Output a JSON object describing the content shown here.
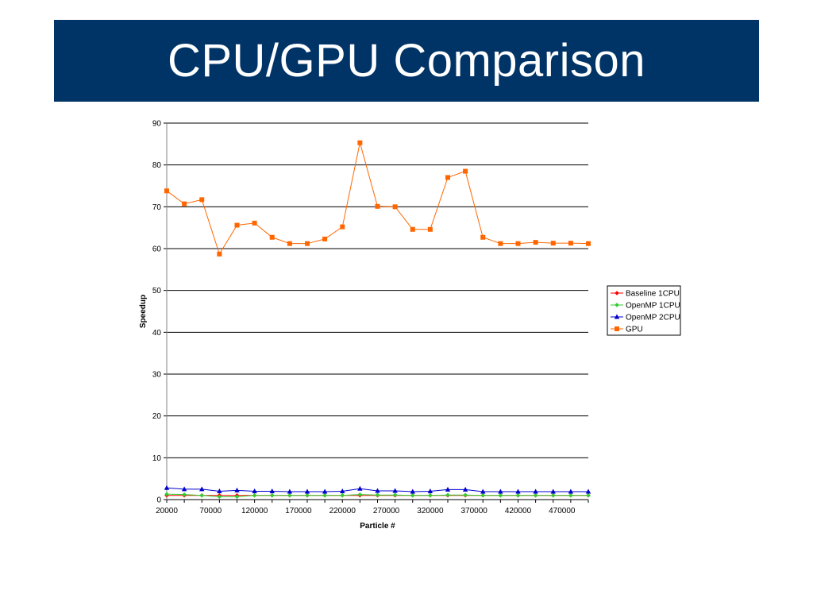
{
  "slide": {
    "title": "CPU/GPU Comparison"
  },
  "colors": {
    "title_bg": "#003366",
    "title_text": "#ffffff"
  },
  "chart_data": {
    "type": "line",
    "xlabel": "Particle #",
    "ylabel": "Speedup",
    "ylim": [
      0,
      90
    ],
    "yticks": [
      0,
      10,
      20,
      30,
      40,
      50,
      60,
      70,
      80,
      90
    ],
    "xlim": [
      20000,
      500000
    ],
    "xticks": [
      20000,
      70000,
      120000,
      170000,
      220000,
      270000,
      320000,
      370000,
      420000,
      470000
    ],
    "grid": "horizontal",
    "legend_position": "right",
    "x": [
      20000,
      40000,
      60000,
      80000,
      100000,
      120000,
      140000,
      160000,
      180000,
      200000,
      220000,
      240000,
      260000,
      280000,
      300000,
      320000,
      340000,
      360000,
      380000,
      400000,
      420000,
      440000,
      460000,
      480000,
      500000
    ],
    "series": [
      {
        "name": "Baseline 1CPU",
        "color": "#ff0000",
        "marker": "diamond",
        "values": [
          1,
          1,
          1,
          1,
          1,
          1,
          1,
          1,
          1,
          1,
          1,
          1,
          1,
          1,
          1,
          1,
          1,
          1,
          1,
          1,
          1,
          1,
          1,
          1,
          1
        ]
      },
      {
        "name": "OpenMP 1CPU",
        "color": "#33cc33",
        "marker": "diamond",
        "values": [
          1.3,
          1.2,
          1.0,
          0.7,
          0.7,
          1.0,
          1.0,
          1.0,
          1.0,
          1.0,
          1.0,
          1.2,
          1.1,
          1.1,
          1.0,
          1.0,
          1.1,
          1.1,
          1.0,
          1.0,
          1.0,
          1.0,
          1.0,
          1.0,
          1.0
        ]
      },
      {
        "name": "OpenMP 2CPU",
        "color": "#0000cc",
        "marker": "triangle",
        "values": [
          2.8,
          2.5,
          2.5,
          2.0,
          2.2,
          2.0,
          2.0,
          1.9,
          1.9,
          1.9,
          2.0,
          2.6,
          2.1,
          2.1,
          1.9,
          2.0,
          2.4,
          2.4,
          1.9,
          1.9,
          1.9,
          1.9,
          1.9,
          1.9,
          1.9
        ]
      },
      {
        "name": "GPU",
        "color": "#ff6600",
        "marker": "square",
        "values": [
          73.8,
          70.7,
          71.7,
          58.7,
          65.6,
          66.1,
          62.7,
          61.2,
          61.2,
          62.3,
          65.2,
          85.3,
          70.1,
          70.0,
          64.6,
          64.6,
          77.0,
          78.5,
          62.7,
          61.2,
          61.2,
          61.5,
          61.3,
          61.3,
          61.2
        ]
      }
    ]
  }
}
